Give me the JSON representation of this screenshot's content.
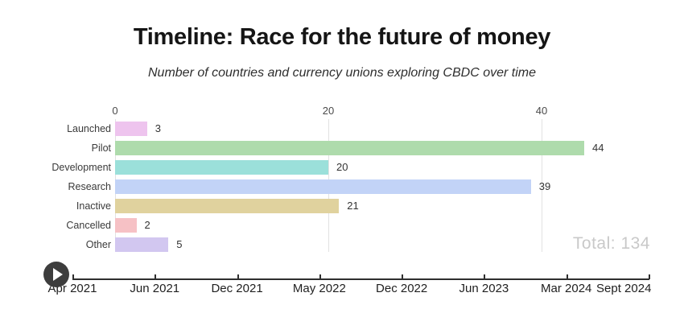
{
  "header": {
    "title": "Timeline: Race for the future of money",
    "subtitle": "Number of countries and currency unions exploring CBDC over time"
  },
  "chart_data": {
    "type": "bar",
    "orientation": "horizontal",
    "title": "Timeline: Race for the future of money",
    "subtitle": "Number of countries and currency unions exploring CBDC over time",
    "categories": [
      "Launched",
      "Pilot",
      "Development",
      "Research",
      "Inactive",
      "Cancelled",
      "Other"
    ],
    "values": [
      3,
      44,
      20,
      39,
      21,
      2,
      5
    ],
    "bar_colors": [
      "#eec4ee",
      "#aedbac",
      "#9be0da",
      "#c2d3f7",
      "#e0d29e",
      "#f6c1c5",
      "#d2c7f0"
    ],
    "value_axis": {
      "ticks": [
        "0",
        "20",
        "40"
      ],
      "tick_values": [
        0,
        20,
        40
      ],
      "range": [
        0,
        50
      ],
      "grid": "vertical light gray lines",
      "position": "top"
    },
    "total_label": "Total: 134",
    "timeline_axis": {
      "labels": [
        "Apr 2021",
        "Jun 2021",
        "Dec 2021",
        "May 2022",
        "Dec 2022",
        "Jun 2023",
        "Mar 2024",
        "Sept 2024"
      ],
      "position": "bottom"
    }
  },
  "controls": {
    "play_button": "play-timeline-animation"
  },
  "colors": {
    "background": "#ffffff",
    "gridline": "#e2e2e2",
    "axis_line": "#2f2f2f",
    "title_text": "#151515",
    "total_text": "#c9c9c9",
    "play_button": "#3d3d3d"
  }
}
